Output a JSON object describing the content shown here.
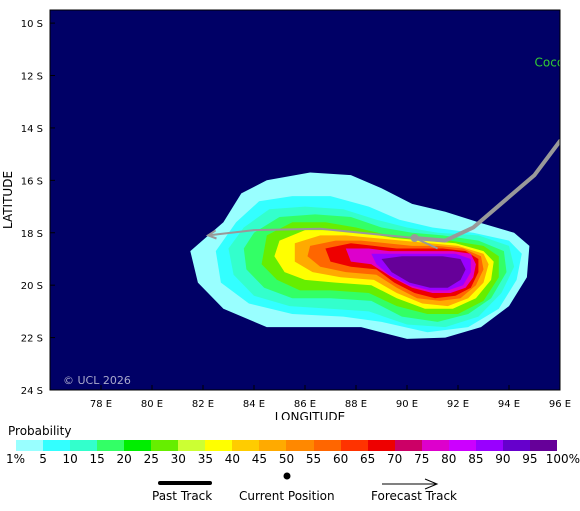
{
  "chart_data": {
    "type": "heatmap",
    "xlabel": "LONGITUDE",
    "ylabel": "LATITUDE",
    "xlim": [
      76,
      96
    ],
    "ylim": [
      -24,
      -9.5
    ],
    "x_ticks": [
      {
        "value": 78,
        "label": "78 E"
      },
      {
        "value": 80,
        "label": "80 E"
      },
      {
        "value": 82,
        "label": "82 E"
      },
      {
        "value": 84,
        "label": "84 E"
      },
      {
        "value": 86,
        "label": "86 E"
      },
      {
        "value": 88,
        "label": "88 E"
      },
      {
        "value": 90,
        "label": "90 E"
      },
      {
        "value": 92,
        "label": "92 E"
      },
      {
        "value": 94,
        "label": "94 E"
      },
      {
        "value": 96,
        "label": "96 E"
      }
    ],
    "y_ticks": [
      {
        "value": -10,
        "label": "10 S"
      },
      {
        "value": -12,
        "label": "12 S"
      },
      {
        "value": -14,
        "label": "14 S"
      },
      {
        "value": -16,
        "label": "16 S"
      },
      {
        "value": -18,
        "label": "18 S"
      },
      {
        "value": -20,
        "label": "20 S"
      },
      {
        "value": -22,
        "label": "22 S"
      },
      {
        "value": -24,
        "label": "24 S"
      }
    ],
    "background_color": "#000066",
    "copyright": "© UCL 2026",
    "storm_label": {
      "text": "Coco",
      "lon": 95.0,
      "lat": -11.5,
      "color": "#33cc33"
    },
    "past_track": [
      [
        96.0,
        -14.5
      ],
      [
        95.0,
        -15.8
      ],
      [
        93.8,
        -16.8
      ],
      [
        92.6,
        -17.8
      ],
      [
        91.5,
        -18.3
      ],
      [
        90.3,
        -18.2
      ]
    ],
    "forecast_track": [
      [
        91.2,
        -18.6
      ],
      [
        90.3,
        -18.2
      ],
      [
        86.6,
        -17.85
      ],
      [
        84.0,
        -17.9
      ],
      [
        82.2,
        -18.1
      ]
    ],
    "current_position": [
      90.3,
      -18.2
    ],
    "probability_regions": [
      {
        "level": 1,
        "points": [
          [
            82.8,
            -17.6
          ],
          [
            83.5,
            -16.5
          ],
          [
            84.5,
            -16
          ],
          [
            86.2,
            -15.7
          ],
          [
            87.8,
            -15.8
          ],
          [
            89,
            -16.3
          ],
          [
            90.2,
            -16.9
          ],
          [
            91.5,
            -17.2
          ],
          [
            92.8,
            -17.6
          ],
          [
            94.2,
            -18
          ],
          [
            94.8,
            -18.5
          ],
          [
            94.7,
            -19.7
          ],
          [
            94,
            -20.8
          ],
          [
            92.9,
            -21.6
          ],
          [
            91.5,
            -22
          ],
          [
            90,
            -22.05
          ],
          [
            88.2,
            -21.6
          ],
          [
            86.5,
            -21.6
          ],
          [
            84.5,
            -21.6
          ],
          [
            82.8,
            -20.9
          ],
          [
            81.8,
            -19.9
          ],
          [
            81.5,
            -18.7
          ]
        ]
      },
      {
        "level": 5,
        "points": [
          [
            83.3,
            -17.6
          ],
          [
            84.2,
            -16.8
          ],
          [
            85.5,
            -16.6
          ],
          [
            87,
            -16.6
          ],
          [
            88.5,
            -17
          ],
          [
            89.7,
            -17.5
          ],
          [
            91,
            -17.8
          ],
          [
            92.6,
            -18
          ],
          [
            94,
            -18.3
          ],
          [
            94.5,
            -18.8
          ],
          [
            94.3,
            -19.8
          ],
          [
            93.6,
            -20.9
          ],
          [
            92.4,
            -21.6
          ],
          [
            90.8,
            -21.8
          ],
          [
            89,
            -21.4
          ],
          [
            87.5,
            -21.2
          ],
          [
            85.5,
            -21.1
          ],
          [
            83.8,
            -20.7
          ],
          [
            82.7,
            -19.9
          ],
          [
            82.5,
            -18.7
          ]
        ]
      },
      {
        "level": 10,
        "points": [
          [
            83.6,
            -17.8
          ],
          [
            84.6,
            -17.1
          ],
          [
            86,
            -17
          ],
          [
            87.5,
            -17.1
          ],
          [
            88.8,
            -17.5
          ],
          [
            90,
            -17.8
          ],
          [
            91.2,
            -18
          ],
          [
            92.8,
            -18.1
          ],
          [
            94,
            -18.5
          ],
          [
            94.2,
            -19.3
          ],
          [
            93.7,
            -20.3
          ],
          [
            92.8,
            -21.2
          ],
          [
            91.5,
            -21.6
          ],
          [
            90,
            -21.5
          ],
          [
            88.5,
            -21
          ],
          [
            87,
            -20.9
          ],
          [
            85.4,
            -20.8
          ],
          [
            84,
            -20.4
          ],
          [
            83.2,
            -19.6
          ],
          [
            83,
            -18.6
          ]
        ]
      },
      {
        "level": 15,
        "points": [
          [
            84,
            -18
          ],
          [
            85,
            -17.4
          ],
          [
            86.4,
            -17.3
          ],
          [
            87.8,
            -17.4
          ],
          [
            89,
            -17.8
          ],
          [
            90.2,
            -18
          ],
          [
            91.4,
            -18.1
          ],
          [
            92.8,
            -18.3
          ],
          [
            93.8,
            -18.7
          ],
          [
            93.9,
            -19.5
          ],
          [
            93.3,
            -20.5
          ],
          [
            92.4,
            -21.1
          ],
          [
            91.2,
            -21.4
          ],
          [
            89.8,
            -21.2
          ],
          [
            88.6,
            -20.6
          ],
          [
            87,
            -20.5
          ],
          [
            85.5,
            -20.5
          ],
          [
            84.4,
            -20.1
          ],
          [
            83.7,
            -19.4
          ],
          [
            83.6,
            -18.6
          ]
        ]
      },
      {
        "level": 25,
        "points": [
          [
            84.5,
            -18.1
          ],
          [
            85.5,
            -17.6
          ],
          [
            86.8,
            -17.6
          ],
          [
            88,
            -17.8
          ],
          [
            89.3,
            -18.1
          ],
          [
            90.5,
            -18.2
          ],
          [
            91.7,
            -18.3
          ],
          [
            93,
            -18.5
          ],
          [
            93.6,
            -18.9
          ],
          [
            93.6,
            -19.7
          ],
          [
            93,
            -20.6
          ],
          [
            92,
            -21.1
          ],
          [
            90.8,
            -21.1
          ],
          [
            89.6,
            -20.8
          ],
          [
            88.5,
            -20.3
          ],
          [
            87,
            -20.2
          ],
          [
            85.8,
            -20.2
          ],
          [
            84.9,
            -19.8
          ],
          [
            84.3,
            -19.2
          ]
        ]
      },
      {
        "level": 35,
        "points": [
          [
            85,
            -18.3
          ],
          [
            86,
            -17.9
          ],
          [
            87.2,
            -17.9
          ],
          [
            88.3,
            -18
          ],
          [
            89.5,
            -18.2
          ],
          [
            90.7,
            -18.3
          ],
          [
            91.9,
            -18.4
          ],
          [
            93,
            -18.7
          ],
          [
            93.4,
            -19.1
          ],
          [
            93.3,
            -19.8
          ],
          [
            92.7,
            -20.5
          ],
          [
            91.8,
            -20.9
          ],
          [
            90.7,
            -20.9
          ],
          [
            89.6,
            -20.5
          ],
          [
            88.6,
            -20
          ],
          [
            87.2,
            -19.9
          ],
          [
            86,
            -19.8
          ],
          [
            85.2,
            -19.5
          ],
          [
            84.8,
            -18.9
          ]
        ]
      },
      {
        "level": 45,
        "points": [
          [
            85.6,
            -18.4
          ],
          [
            86.6,
            -18.1
          ],
          [
            87.6,
            -18.1
          ],
          [
            88.7,
            -18.2
          ],
          [
            89.8,
            -18.3
          ],
          [
            90.9,
            -18.4
          ],
          [
            92,
            -18.5
          ],
          [
            93,
            -18.8
          ],
          [
            93.2,
            -19.2
          ],
          [
            93,
            -19.9
          ],
          [
            92.4,
            -20.5
          ],
          [
            91.6,
            -20.8
          ],
          [
            90.6,
            -20.7
          ],
          [
            89.6,
            -20.3
          ],
          [
            88.7,
            -19.8
          ],
          [
            87.4,
            -19.7
          ],
          [
            86.3,
            -19.5
          ],
          [
            85.6,
            -19.1
          ]
        ]
      },
      {
        "level": 55,
        "points": [
          [
            86.2,
            -18.5
          ],
          [
            87.2,
            -18.3
          ],
          [
            88.2,
            -18.3
          ],
          [
            89.2,
            -18.4
          ],
          [
            90.2,
            -18.5
          ],
          [
            91.2,
            -18.5
          ],
          [
            92.2,
            -18.6
          ],
          [
            92.9,
            -18.9
          ],
          [
            93,
            -19.4
          ],
          [
            92.7,
            -20
          ],
          [
            92.1,
            -20.5
          ],
          [
            91.3,
            -20.6
          ],
          [
            90.4,
            -20.5
          ],
          [
            89.6,
            -20.1
          ],
          [
            88.8,
            -19.6
          ],
          [
            87.6,
            -19.5
          ],
          [
            86.6,
            -19.3
          ],
          [
            86.1,
            -18.9
          ]
        ]
      },
      {
        "level": 65,
        "points": [
          [
            86.8,
            -18.6
          ],
          [
            87.8,
            -18.4
          ],
          [
            88.7,
            -18.5
          ],
          [
            89.6,
            -18.6
          ],
          [
            90.5,
            -18.6
          ],
          [
            91.4,
            -18.6
          ],
          [
            92.3,
            -18.7
          ],
          [
            92.8,
            -19
          ],
          [
            92.8,
            -19.5
          ],
          [
            92.5,
            -20.1
          ],
          [
            91.9,
            -20.4
          ],
          [
            91.1,
            -20.5
          ],
          [
            90.3,
            -20.3
          ],
          [
            89.5,
            -19.9
          ],
          [
            88.8,
            -19.4
          ],
          [
            87.8,
            -19.3
          ],
          [
            87,
            -19.1
          ]
        ]
      },
      {
        "level": 75,
        "points": [
          [
            87.6,
            -18.6
          ],
          [
            88.5,
            -18.6
          ],
          [
            89.3,
            -18.7
          ],
          [
            90.1,
            -18.7
          ],
          [
            91,
            -18.7
          ],
          [
            91.8,
            -18.7
          ],
          [
            92.5,
            -18.8
          ],
          [
            92.7,
            -19.2
          ],
          [
            92.6,
            -19.7
          ],
          [
            92.3,
            -20.1
          ],
          [
            91.7,
            -20.3
          ],
          [
            91,
            -20.3
          ],
          [
            90.2,
            -20.1
          ],
          [
            89.4,
            -19.7
          ],
          [
            88.6,
            -19.2
          ],
          [
            87.8,
            -19.1
          ]
        ]
      },
      {
        "level": 85,
        "points": [
          [
            88.6,
            -18.8
          ],
          [
            89.5,
            -18.8
          ],
          [
            90.3,
            -18.8
          ],
          [
            91.1,
            -18.8
          ],
          [
            91.9,
            -18.8
          ],
          [
            92.5,
            -19
          ],
          [
            92.5,
            -19.5
          ],
          [
            92.2,
            -20
          ],
          [
            91.6,
            -20.2
          ],
          [
            90.9,
            -20.2
          ],
          [
            90.1,
            -20
          ],
          [
            89.3,
            -19.6
          ],
          [
            88.8,
            -19.2
          ]
        ]
      },
      {
        "level": 95,
        "points": [
          [
            89,
            -19
          ],
          [
            89.8,
            -18.9
          ],
          [
            90.6,
            -18.9
          ],
          [
            91.4,
            -18.9
          ],
          [
            92.1,
            -19
          ],
          [
            92.3,
            -19.4
          ],
          [
            92.1,
            -19.8
          ],
          [
            91.6,
            -20.1
          ],
          [
            90.9,
            -20.1
          ],
          [
            90.1,
            -19.9
          ],
          [
            89.4,
            -19.5
          ]
        ]
      }
    ]
  },
  "legend": {
    "title": "Probability",
    "levels": [
      {
        "label": "1%",
        "color": "#99ffff"
      },
      {
        "label": "5",
        "color": "#33ffff"
      },
      {
        "label": "10",
        "color": "#33ffcc"
      },
      {
        "label": "15",
        "color": "#33ff66"
      },
      {
        "label": "20",
        "color": "#00ee00"
      },
      {
        "label": "25",
        "color": "#66ee00"
      },
      {
        "label": "30",
        "color": "#ccff33"
      },
      {
        "label": "35",
        "color": "#ffff00"
      },
      {
        "label": "40",
        "color": "#ffcc00"
      },
      {
        "label": "45",
        "color": "#ffaa00"
      },
      {
        "label": "50",
        "color": "#ff8800"
      },
      {
        "label": "55",
        "color": "#ff6600"
      },
      {
        "label": "60",
        "color": "#ff3300"
      },
      {
        "label": "65",
        "color": "#ee0000"
      },
      {
        "label": "70",
        "color": "#cc0066"
      },
      {
        "label": "75",
        "color": "#dd00cc"
      },
      {
        "label": "80",
        "color": "#cc00ff"
      },
      {
        "label": "85",
        "color": "#9900ff"
      },
      {
        "label": "90",
        "color": "#6600cc"
      },
      {
        "label": "95",
        "color": "#660099"
      },
      {
        "label": "100%",
        "color": "#660066"
      }
    ]
  },
  "key": {
    "past_track": "Past Track",
    "current_position": "Current Position",
    "forecast_track": "Forecast Track"
  }
}
